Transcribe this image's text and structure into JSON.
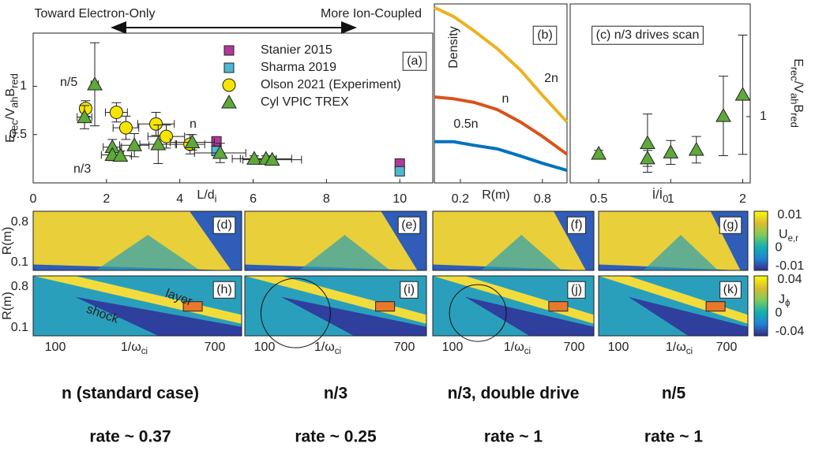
{
  "chart_data": [
    {
      "type": "scatter",
      "annotations": [
        "Toward Electron-Only",
        "More Ion-Coupled",
        "n/5",
        "n",
        "n/3",
        "(a)"
      ],
      "xlabel": [
        "L/d",
        "i"
      ],
      "ylabel": [
        "E",
        "rec",
        "/V",
        "ah",
        "B",
        "red"
      ],
      "xlim": [
        0,
        10.9
      ],
      "xticks": [
        0,
        2,
        4,
        6,
        8,
        10
      ],
      "ylim": [
        0,
        1.55
      ],
      "yticks": [
        0.5,
        1
      ],
      "legend": "upper right",
      "series": [
        {
          "name": "Stanier 2015",
          "color": "#b0399b",
          "marker": "square",
          "x": [
            5,
            10
          ],
          "values": [
            0.43,
            0.2
          ]
        },
        {
          "name": "Sharma 2019",
          "color": "#4fb6d3",
          "marker": "square",
          "x": [
            5,
            10
          ],
          "values": [
            0.33,
            0.12
          ]
        },
        {
          "name": "Olson 2021 (Experiment)",
          "color": "#f5e500",
          "marker": "circle",
          "x": [
            1.43,
            2.27,
            2.53,
            3.35,
            3.63,
            4.28
          ],
          "values": [
            0.77,
            0.73,
            0.57,
            0.61,
            0.48,
            0.4
          ],
          "yerr": [
            0.08,
            0.1,
            0.12,
            0.12,
            0.12,
            0.1
          ],
          "xerr": [
            0.15,
            0.3,
            0.35,
            0.5,
            0.5,
            0.4
          ]
        },
        {
          "name": "Cyl VPIC TREX",
          "color": "#5fa83a",
          "marker": "triangle",
          "x": [
            1.68,
            1.4,
            2.16,
            2.16,
            2.38,
            2.76,
            3.41,
            4.34,
            5.1,
            6.03,
            6.35,
            6.52
          ],
          "values": [
            1.02,
            0.68,
            0.37,
            0.29,
            0.28,
            0.39,
            0.4,
            0.42,
            0.31,
            0.25,
            0.25,
            0.24
          ],
          "yerr": [
            0.43,
            0.12,
            0.08,
            0.06,
            0.05,
            0.12,
            0.2,
            0.08,
            0.1,
            0.03,
            0.03,
            0.03
          ],
          "xerr": [
            0.1,
            0.2,
            0.25,
            0.3,
            0.3,
            0.4,
            0.5,
            0.6,
            0.7,
            0.6,
            0.7,
            0.8
          ]
        }
      ]
    },
    {
      "type": "line",
      "annotations": [
        "Density",
        "(b)"
      ],
      "xlabel": [
        "R(m)"
      ],
      "xlim": [
        0.01,
        0.98
      ],
      "xticks": [
        0.2,
        0.8
      ],
      "ylim": [
        0,
        1
      ],
      "x": [
        0.01,
        0.15,
        0.3,
        0.47,
        0.64,
        0.8,
        0.98
      ],
      "series": [
        {
          "name": "2n",
          "color": "#edb120",
          "values": [
            0.98,
            0.93,
            0.85,
            0.75,
            0.63,
            0.49,
            0.34
          ]
        },
        {
          "name": "n",
          "color": "#d95319",
          "values": [
            0.48,
            0.47,
            0.45,
            0.41,
            0.34,
            0.26,
            0.16
          ]
        },
        {
          "name": "0.5n",
          "color": "#0072bd",
          "values": [
            0.23,
            0.23,
            0.21,
            0.19,
            0.15,
            0.11,
            0.07
          ]
        }
      ]
    },
    {
      "type": "scatter",
      "annotations": [
        "(c) n/3 drives scan"
      ],
      "xlabel": [
        "İ/İ",
        "0"
      ],
      "ylabel": [
        "E",
        "rec",
        "/V",
        "ah",
        "B",
        "red"
      ],
      "xscale": "log",
      "xlim": [
        0.38,
        2.15
      ],
      "xticks": [
        0.5,
        1,
        2
      ],
      "ylim": [
        0,
        2.7
      ],
      "yticks": [
        1
      ],
      "y_axis_side": "right",
      "series": [
        {
          "color": "#5fa83a",
          "marker": "triangle",
          "x": [
            0.5,
            0.8,
            0.8,
            1.0,
            1.28,
            1.66,
            2.0
          ],
          "values": [
            0.44,
            0.6,
            0.37,
            0.46,
            0.5,
            1.01,
            1.33
          ],
          "yerr": [
            0.05,
            0.44,
            0.12,
            0.18,
            0.2,
            0.6,
            0.9
          ]
        }
      ]
    }
  ],
  "heatmaps": {
    "ylabel": "R(m)",
    "yticks": [
      "0.8",
      "0.1"
    ],
    "xticks": [
      "100",
      "700"
    ],
    "xlabel": [
      "1/ω",
      "ci"
    ],
    "annotations": [
      "layer",
      "shock"
    ],
    "rows": [
      {
        "colorbar_label": [
          "U",
          "e,r"
        ],
        "colorbar_ticks": [
          "0.01",
          "0",
          "-0.01"
        ],
        "panels": [
          "(d)",
          "(e)",
          "(f)",
          "(g)"
        ]
      },
      {
        "colorbar_label": [
          "J",
          "ϕ"
        ],
        "colorbar_ticks": [
          "0.04",
          "0",
          "-0.04"
        ],
        "panels": [
          "(h)",
          "(i)",
          "(j)",
          "(k)"
        ]
      }
    ]
  },
  "captions": [
    {
      "case": "n (standard case)",
      "rate": "rate ~ 0.37"
    },
    {
      "case": "n/3",
      "rate": "rate ~ 0.25"
    },
    {
      "case": "n/3, double drive",
      "rate": "rate ~ 1"
    },
    {
      "case": "n/5",
      "rate": "rate ~ 1"
    }
  ]
}
